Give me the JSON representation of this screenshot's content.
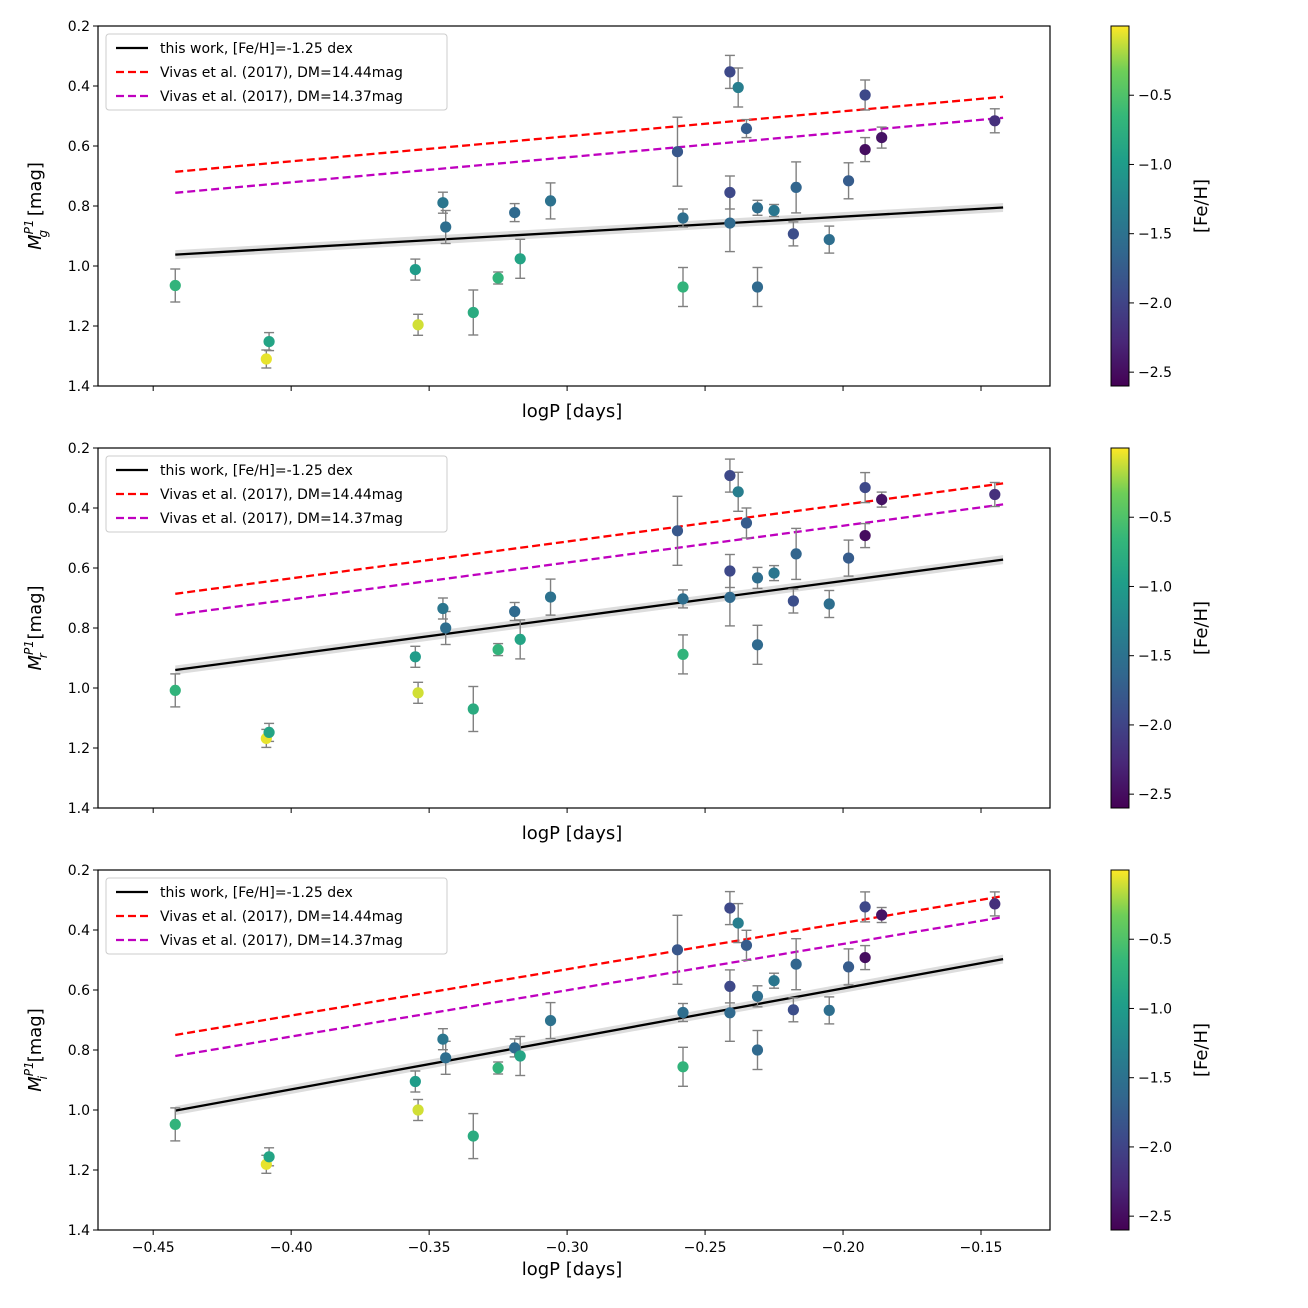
{
  "chart_data": [
    {
      "type": "scatter",
      "panel": "g",
      "xlabel": "logP [days]",
      "ylabel_prefix": "M",
      "ylabel_sub": "g",
      "ylabel_sup": "P1",
      "ylabel_suffix": " [mag]",
      "xlim": [
        -0.47,
        -0.125
      ],
      "ylim": [
        1.4,
        0.2
      ],
      "y_inverted": true,
      "show_x_ticklabels": false,
      "xticks": [
        -0.45,
        -0.4,
        -0.35,
        -0.3,
        -0.25,
        -0.2,
        -0.15
      ],
      "yticks": [
        0.2,
        0.4,
        0.6,
        0.8,
        1.0,
        1.2,
        1.4
      ],
      "ytick_labels": [
        "0.2",
        "0.4",
        "0.6",
        "0.8",
        "1.0",
        "1.2",
        "1.4"
      ],
      "legend": {
        "position": "top-left",
        "entries": [
          {
            "label": "this work, [Fe/H]=-1.25 dex",
            "color": "#000000",
            "style": "solid"
          },
          {
            "label": "Vivas et al. (2017), DM=14.44mag",
            "color": "#ff0000",
            "style": "dashed"
          },
          {
            "label": "Vivas et al. (2017), DM=14.37mag",
            "color": "#bf00bf",
            "style": "dashed"
          }
        ]
      },
      "lines": [
        {
          "name": "this work, [Fe/H]=-1.25 dex",
          "x": [
            -0.442,
            -0.142
          ],
          "y": [
            0.962,
            0.805
          ],
          "color": "#000000",
          "band": 0.015
        },
        {
          "name": "Vivas et al. (2017), DM=14.44mag",
          "x": [
            -0.442,
            -0.142
          ],
          "y": [
            0.686,
            0.436
          ],
          "color": "#ff0000"
        },
        {
          "name": "Vivas et al. (2017), DM=14.37mag",
          "x": [
            -0.442,
            -0.142
          ],
          "y": [
            0.756,
            0.506
          ],
          "color": "#bf00bf"
        }
      ],
      "points": [
        {
          "x": -0.442,
          "y": 1.065,
          "err": 0.055,
          "feh": -0.7
        },
        {
          "x": -0.409,
          "y": 1.31,
          "err": 0.03,
          "feh": -0.05
        },
        {
          "x": -0.408,
          "y": 1.252,
          "err": 0.03,
          "feh": -0.9
        },
        {
          "x": -0.355,
          "y": 1.012,
          "err": 0.035,
          "feh": -1.0
        },
        {
          "x": -0.354,
          "y": 1.196,
          "err": 0.035,
          "feh": -0.1
        },
        {
          "x": -0.345,
          "y": 0.789,
          "err": 0.035,
          "feh": -1.45
        },
        {
          "x": -0.344,
          "y": 0.87,
          "err": 0.055,
          "feh": -1.55
        },
        {
          "x": -0.334,
          "y": 1.155,
          "err": 0.075,
          "feh": -0.8
        },
        {
          "x": -0.325,
          "y": 1.04,
          "err": 0.02,
          "feh": -0.7
        },
        {
          "x": -0.319,
          "y": 0.822,
          "err": 0.03,
          "feh": -1.6
        },
        {
          "x": -0.317,
          "y": 0.976,
          "err": 0.065,
          "feh": -0.9
        },
        {
          "x": -0.306,
          "y": 0.783,
          "err": 0.06,
          "feh": -1.5
        },
        {
          "x": -0.26,
          "y": 0.619,
          "err": 0.115,
          "feh": -1.8
        },
        {
          "x": -0.258,
          "y": 0.84,
          "err": 0.03,
          "feh": -1.55
        },
        {
          "x": -0.258,
          "y": 1.07,
          "err": 0.065,
          "feh": -0.7
        },
        {
          "x": -0.241,
          "y": 0.353,
          "err": 0.055,
          "feh": -1.95
        },
        {
          "x": -0.241,
          "y": 0.755,
          "err": 0.055,
          "feh": -1.95
        },
        {
          "x": -0.241,
          "y": 0.857,
          "err": 0.095,
          "feh": -1.6
        },
        {
          "x": -0.238,
          "y": 0.405,
          "err": 0.065,
          "feh": -1.35
        },
        {
          "x": -0.235,
          "y": 0.542,
          "err": 0.03,
          "feh": -1.75
        },
        {
          "x": -0.231,
          "y": 0.806,
          "err": 0.025,
          "feh": -1.55
        },
        {
          "x": -0.231,
          "y": 1.07,
          "err": 0.065,
          "feh": -1.6
        },
        {
          "x": -0.225,
          "y": 0.815,
          "err": 0.02,
          "feh": -1.45
        },
        {
          "x": -0.218,
          "y": 0.893,
          "err": 0.04,
          "feh": -1.9
        },
        {
          "x": -0.217,
          "y": 0.738,
          "err": 0.085,
          "feh": -1.65
        },
        {
          "x": -0.205,
          "y": 0.912,
          "err": 0.045,
          "feh": -1.55
        },
        {
          "x": -0.198,
          "y": 0.716,
          "err": 0.06,
          "feh": -1.75
        },
        {
          "x": -0.192,
          "y": 0.43,
          "err": 0.05,
          "feh": -1.95
        },
        {
          "x": -0.192,
          "y": 0.612,
          "err": 0.04,
          "feh": -2.5
        },
        {
          "x": -0.186,
          "y": 0.572,
          "err": 0.035,
          "feh": -2.45
        },
        {
          "x": -0.145,
          "y": 0.516,
          "err": 0.04,
          "feh": -2.2
        }
      ]
    },
    {
      "type": "scatter",
      "panel": "r",
      "xlabel": "logP [days]",
      "ylabel_prefix": "M",
      "ylabel_sub": "r",
      "ylabel_sup": "P1",
      "ylabel_suffix": " [mag]",
      "xlim": [
        -0.47,
        -0.125
      ],
      "ylim": [
        1.4,
        0.2
      ],
      "y_inverted": true,
      "show_x_ticklabels": false,
      "xticks": [
        -0.45,
        -0.4,
        -0.35,
        -0.3,
        -0.25,
        -0.2,
        -0.15
      ],
      "yticks": [
        0.2,
        0.4,
        0.6,
        0.8,
        1.0,
        1.2,
        1.4
      ],
      "ytick_labels": [
        "0.2",
        "0.4",
        "0.6",
        "0.8",
        "1.0",
        "1.2",
        "1.4"
      ],
      "legend": {
        "position": "top-left",
        "entries": [
          {
            "label": "this work, [Fe/H]=-1.25 dex",
            "color": "#000000",
            "style": "solid"
          },
          {
            "label": "Vivas et al. (2017), DM=14.44mag",
            "color": "#ff0000",
            "style": "dashed"
          },
          {
            "label": "Vivas et al. (2017), DM=14.37mag",
            "color": "#bf00bf",
            "style": "dashed"
          }
        ]
      },
      "lines": [
        {
          "name": "this work, [Fe/H]=-1.25 dex",
          "x": [
            -0.442,
            -0.142
          ],
          "y": [
            0.94,
            0.572
          ],
          "color": "#000000",
          "band": 0.015
        },
        {
          "name": "Vivas et al. (2017), DM=14.44mag",
          "x": [
            -0.442,
            -0.142
          ],
          "y": [
            0.686,
            0.318
          ],
          "color": "#ff0000"
        },
        {
          "name": "Vivas et al. (2017), DM=14.37mag",
          "x": [
            -0.442,
            -0.142
          ],
          "y": [
            0.756,
            0.388
          ],
          "color": "#bf00bf"
        }
      ],
      "points": [
        {
          "x": -0.442,
          "y": 1.008,
          "err": 0.055,
          "feh": -0.7
        },
        {
          "x": -0.409,
          "y": 1.168,
          "err": 0.03,
          "feh": -0.05
        },
        {
          "x": -0.408,
          "y": 1.148,
          "err": 0.03,
          "feh": -0.9
        },
        {
          "x": -0.355,
          "y": 0.896,
          "err": 0.035,
          "feh": -1.0
        },
        {
          "x": -0.354,
          "y": 1.016,
          "err": 0.035,
          "feh": -0.1
        },
        {
          "x": -0.345,
          "y": 0.735,
          "err": 0.035,
          "feh": -1.45
        },
        {
          "x": -0.344,
          "y": 0.8,
          "err": 0.055,
          "feh": -1.55
        },
        {
          "x": -0.334,
          "y": 1.07,
          "err": 0.075,
          "feh": -0.8
        },
        {
          "x": -0.325,
          "y": 0.872,
          "err": 0.02,
          "feh": -0.7
        },
        {
          "x": -0.319,
          "y": 0.745,
          "err": 0.03,
          "feh": -1.6
        },
        {
          "x": -0.317,
          "y": 0.838,
          "err": 0.065,
          "feh": -0.9
        },
        {
          "x": -0.306,
          "y": 0.697,
          "err": 0.06,
          "feh": -1.5
        },
        {
          "x": -0.26,
          "y": 0.476,
          "err": 0.115,
          "feh": -1.8
        },
        {
          "x": -0.258,
          "y": 0.703,
          "err": 0.03,
          "feh": -1.55
        },
        {
          "x": -0.258,
          "y": 0.888,
          "err": 0.065,
          "feh": -0.7
        },
        {
          "x": -0.241,
          "y": 0.292,
          "err": 0.055,
          "feh": -1.95
        },
        {
          "x": -0.241,
          "y": 0.61,
          "err": 0.055,
          "feh": -1.95
        },
        {
          "x": -0.241,
          "y": 0.698,
          "err": 0.095,
          "feh": -1.6
        },
        {
          "x": -0.238,
          "y": 0.346,
          "err": 0.065,
          "feh": -1.35
        },
        {
          "x": -0.235,
          "y": 0.45,
          "err": 0.05,
          "feh": -1.75
        },
        {
          "x": -0.231,
          "y": 0.633,
          "err": 0.035,
          "feh": -1.55
        },
        {
          "x": -0.231,
          "y": 0.856,
          "err": 0.065,
          "feh": -1.6
        },
        {
          "x": -0.225,
          "y": 0.617,
          "err": 0.025,
          "feh": -1.45
        },
        {
          "x": -0.218,
          "y": 0.71,
          "err": 0.04,
          "feh": -1.9
        },
        {
          "x": -0.217,
          "y": 0.553,
          "err": 0.085,
          "feh": -1.65
        },
        {
          "x": -0.205,
          "y": 0.72,
          "err": 0.045,
          "feh": -1.55
        },
        {
          "x": -0.198,
          "y": 0.567,
          "err": 0.06,
          "feh": -1.75
        },
        {
          "x": -0.192,
          "y": 0.332,
          "err": 0.05,
          "feh": -1.95
        },
        {
          "x": -0.192,
          "y": 0.492,
          "err": 0.04,
          "feh": -2.5
        },
        {
          "x": -0.186,
          "y": 0.372,
          "err": 0.025,
          "feh": -2.45
        },
        {
          "x": -0.145,
          "y": 0.355,
          "err": 0.04,
          "feh": -2.2
        }
      ]
    },
    {
      "type": "scatter",
      "panel": "i",
      "xlabel": "logP [days]",
      "ylabel_prefix": "M",
      "ylabel_sub": "i",
      "ylabel_sup": "P1",
      "ylabel_suffix": " [mag]",
      "xlim": [
        -0.47,
        -0.125
      ],
      "ylim": [
        1.4,
        0.2
      ],
      "y_inverted": true,
      "show_x_ticklabels": true,
      "xticks": [
        -0.45,
        -0.4,
        -0.35,
        -0.3,
        -0.25,
        -0.2,
        -0.15
      ],
      "xtick_labels": [
        "−0.45",
        "−0.40",
        "−0.35",
        "−0.30",
        "−0.25",
        "−0.20",
        "−0.15"
      ],
      "yticks": [
        0.2,
        0.4,
        0.6,
        0.8,
        1.0,
        1.2,
        1.4
      ],
      "ytick_labels": [
        "0.2",
        "0.4",
        "0.6",
        "0.8",
        "1.0",
        "1.2",
        "1.4"
      ],
      "legend": {
        "position": "top-left",
        "entries": [
          {
            "label": "this work, [Fe/H]=-1.25 dex",
            "color": "#000000",
            "style": "solid"
          },
          {
            "label": "Vivas et al. (2017), DM=14.44mag",
            "color": "#ff0000",
            "style": "dashed"
          },
          {
            "label": "Vivas et al. (2017), DM=14.37mag",
            "color": "#bf00bf",
            "style": "dashed"
          }
        ]
      },
      "lines": [
        {
          "name": "this work, [Fe/H]=-1.25 dex",
          "x": [
            -0.442,
            -0.142
          ],
          "y": [
            1.002,
            0.497
          ],
          "color": "#000000",
          "band": 0.015
        },
        {
          "name": "Vivas et al. (2017), DM=14.44mag",
          "x": [
            -0.442,
            -0.142
          ],
          "y": [
            0.75,
            0.287
          ],
          "color": "#ff0000"
        },
        {
          "name": "Vivas et al. (2017), DM=14.37mag",
          "x": [
            -0.442,
            -0.142
          ],
          "y": [
            0.82,
            0.357
          ],
          "color": "#bf00bf"
        }
      ],
      "points": [
        {
          "x": -0.442,
          "y": 1.048,
          "err": 0.055,
          "feh": -0.7
        },
        {
          "x": -0.409,
          "y": 1.181,
          "err": 0.03,
          "feh": -0.05
        },
        {
          "x": -0.408,
          "y": 1.156,
          "err": 0.03,
          "feh": -0.9
        },
        {
          "x": -0.355,
          "y": 0.905,
          "err": 0.035,
          "feh": -1.0
        },
        {
          "x": -0.354,
          "y": 1.0,
          "err": 0.035,
          "feh": -0.1
        },
        {
          "x": -0.345,
          "y": 0.764,
          "err": 0.035,
          "feh": -1.45
        },
        {
          "x": -0.344,
          "y": 0.826,
          "err": 0.055,
          "feh": -1.55
        },
        {
          "x": -0.334,
          "y": 1.087,
          "err": 0.075,
          "feh": -0.8
        },
        {
          "x": -0.325,
          "y": 0.86,
          "err": 0.02,
          "feh": -0.7
        },
        {
          "x": -0.319,
          "y": 0.793,
          "err": 0.03,
          "feh": -1.6
        },
        {
          "x": -0.317,
          "y": 0.82,
          "err": 0.065,
          "feh": -0.9
        },
        {
          "x": -0.306,
          "y": 0.702,
          "err": 0.06,
          "feh": -1.5
        },
        {
          "x": -0.26,
          "y": 0.466,
          "err": 0.115,
          "feh": -1.8
        },
        {
          "x": -0.258,
          "y": 0.675,
          "err": 0.03,
          "feh": -1.55
        },
        {
          "x": -0.258,
          "y": 0.856,
          "err": 0.065,
          "feh": -0.7
        },
        {
          "x": -0.241,
          "y": 0.327,
          "err": 0.055,
          "feh": -1.95
        },
        {
          "x": -0.241,
          "y": 0.588,
          "err": 0.055,
          "feh": -1.95
        },
        {
          "x": -0.241,
          "y": 0.676,
          "err": 0.095,
          "feh": -1.6
        },
        {
          "x": -0.238,
          "y": 0.377,
          "err": 0.065,
          "feh": -1.35
        },
        {
          "x": -0.235,
          "y": 0.451,
          "err": 0.05,
          "feh": -1.75
        },
        {
          "x": -0.231,
          "y": 0.621,
          "err": 0.035,
          "feh": -1.55
        },
        {
          "x": -0.231,
          "y": 0.8,
          "err": 0.065,
          "feh": -1.6
        },
        {
          "x": -0.225,
          "y": 0.569,
          "err": 0.025,
          "feh": -1.45
        },
        {
          "x": -0.218,
          "y": 0.666,
          "err": 0.04,
          "feh": -1.9
        },
        {
          "x": -0.217,
          "y": 0.514,
          "err": 0.085,
          "feh": -1.65
        },
        {
          "x": -0.205,
          "y": 0.668,
          "err": 0.045,
          "feh": -1.55
        },
        {
          "x": -0.198,
          "y": 0.523,
          "err": 0.06,
          "feh": -1.75
        },
        {
          "x": -0.192,
          "y": 0.323,
          "err": 0.05,
          "feh": -1.95
        },
        {
          "x": -0.192,
          "y": 0.492,
          "err": 0.04,
          "feh": -2.5
        },
        {
          "x": -0.186,
          "y": 0.35,
          "err": 0.025,
          "feh": -2.45
        },
        {
          "x": -0.145,
          "y": 0.313,
          "err": 0.04,
          "feh": -2.2
        }
      ]
    }
  ],
  "colorbar": {
    "label": "[Fe/H]",
    "range": [
      -2.6,
      0.0
    ],
    "ticks": [
      -0.5,
      -1.0,
      -1.5,
      -2.0,
      -2.5
    ],
    "tick_labels": [
      "−0.5",
      "−1.0",
      "−1.5",
      "−2.0",
      "−2.5"
    ],
    "colormap": "viridis"
  },
  "colors": {
    "errorbar": "#808080",
    "band": "#d9d9d9"
  }
}
